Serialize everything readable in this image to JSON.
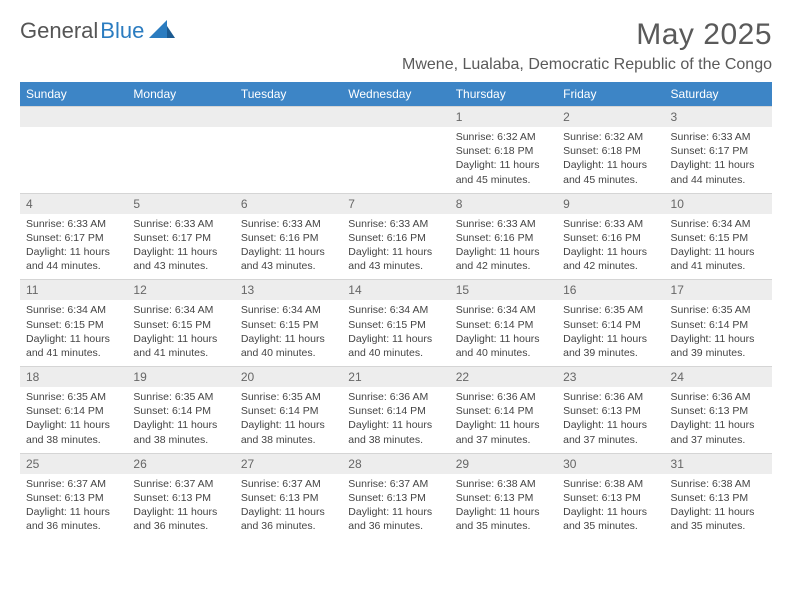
{
  "brand": {
    "part1": "General",
    "part2": "Blue"
  },
  "title": "May 2025",
  "location": "Mwene, Lualaba, Democratic Republic of the Congo",
  "colors": {
    "header_bg": "#3d85c6",
    "header_text": "#ffffff",
    "daynum_bg": "#ededed",
    "text": "#444444",
    "brand_blue": "#2b7cc0",
    "brand_gray": "#555555",
    "page_bg": "#ffffff"
  },
  "typography": {
    "title_fontsize": 30,
    "location_fontsize": 16,
    "header_fontsize": 12,
    "daynum_fontsize": 12,
    "detail_fontsize": 10.5
  },
  "weekdays": [
    "Sunday",
    "Monday",
    "Tuesday",
    "Wednesday",
    "Thursday",
    "Friday",
    "Saturday"
  ],
  "weeks": [
    [
      null,
      null,
      null,
      null,
      {
        "n": "1",
        "sr": "6:32 AM",
        "ss": "6:18 PM",
        "dl": "11 hours and 45 minutes."
      },
      {
        "n": "2",
        "sr": "6:32 AM",
        "ss": "6:18 PM",
        "dl": "11 hours and 45 minutes."
      },
      {
        "n": "3",
        "sr": "6:33 AM",
        "ss": "6:17 PM",
        "dl": "11 hours and 44 minutes."
      }
    ],
    [
      {
        "n": "4",
        "sr": "6:33 AM",
        "ss": "6:17 PM",
        "dl": "11 hours and 44 minutes."
      },
      {
        "n": "5",
        "sr": "6:33 AM",
        "ss": "6:17 PM",
        "dl": "11 hours and 43 minutes."
      },
      {
        "n": "6",
        "sr": "6:33 AM",
        "ss": "6:16 PM",
        "dl": "11 hours and 43 minutes."
      },
      {
        "n": "7",
        "sr": "6:33 AM",
        "ss": "6:16 PM",
        "dl": "11 hours and 43 minutes."
      },
      {
        "n": "8",
        "sr": "6:33 AM",
        "ss": "6:16 PM",
        "dl": "11 hours and 42 minutes."
      },
      {
        "n": "9",
        "sr": "6:33 AM",
        "ss": "6:16 PM",
        "dl": "11 hours and 42 minutes."
      },
      {
        "n": "10",
        "sr": "6:34 AM",
        "ss": "6:15 PM",
        "dl": "11 hours and 41 minutes."
      }
    ],
    [
      {
        "n": "11",
        "sr": "6:34 AM",
        "ss": "6:15 PM",
        "dl": "11 hours and 41 minutes."
      },
      {
        "n": "12",
        "sr": "6:34 AM",
        "ss": "6:15 PM",
        "dl": "11 hours and 41 minutes."
      },
      {
        "n": "13",
        "sr": "6:34 AM",
        "ss": "6:15 PM",
        "dl": "11 hours and 40 minutes."
      },
      {
        "n": "14",
        "sr": "6:34 AM",
        "ss": "6:15 PM",
        "dl": "11 hours and 40 minutes."
      },
      {
        "n": "15",
        "sr": "6:34 AM",
        "ss": "6:14 PM",
        "dl": "11 hours and 40 minutes."
      },
      {
        "n": "16",
        "sr": "6:35 AM",
        "ss": "6:14 PM",
        "dl": "11 hours and 39 minutes."
      },
      {
        "n": "17",
        "sr": "6:35 AM",
        "ss": "6:14 PM",
        "dl": "11 hours and 39 minutes."
      }
    ],
    [
      {
        "n": "18",
        "sr": "6:35 AM",
        "ss": "6:14 PM",
        "dl": "11 hours and 38 minutes."
      },
      {
        "n": "19",
        "sr": "6:35 AM",
        "ss": "6:14 PM",
        "dl": "11 hours and 38 minutes."
      },
      {
        "n": "20",
        "sr": "6:35 AM",
        "ss": "6:14 PM",
        "dl": "11 hours and 38 minutes."
      },
      {
        "n": "21",
        "sr": "6:36 AM",
        "ss": "6:14 PM",
        "dl": "11 hours and 38 minutes."
      },
      {
        "n": "22",
        "sr": "6:36 AM",
        "ss": "6:14 PM",
        "dl": "11 hours and 37 minutes."
      },
      {
        "n": "23",
        "sr": "6:36 AM",
        "ss": "6:13 PM",
        "dl": "11 hours and 37 minutes."
      },
      {
        "n": "24",
        "sr": "6:36 AM",
        "ss": "6:13 PM",
        "dl": "11 hours and 37 minutes."
      }
    ],
    [
      {
        "n": "25",
        "sr": "6:37 AM",
        "ss": "6:13 PM",
        "dl": "11 hours and 36 minutes."
      },
      {
        "n": "26",
        "sr": "6:37 AM",
        "ss": "6:13 PM",
        "dl": "11 hours and 36 minutes."
      },
      {
        "n": "27",
        "sr": "6:37 AM",
        "ss": "6:13 PM",
        "dl": "11 hours and 36 minutes."
      },
      {
        "n": "28",
        "sr": "6:37 AM",
        "ss": "6:13 PM",
        "dl": "11 hours and 36 minutes."
      },
      {
        "n": "29",
        "sr": "6:38 AM",
        "ss": "6:13 PM",
        "dl": "11 hours and 35 minutes."
      },
      {
        "n": "30",
        "sr": "6:38 AM",
        "ss": "6:13 PM",
        "dl": "11 hours and 35 minutes."
      },
      {
        "n": "31",
        "sr": "6:38 AM",
        "ss": "6:13 PM",
        "dl": "11 hours and 35 minutes."
      }
    ]
  ],
  "labels": {
    "sunrise": "Sunrise:",
    "sunset": "Sunset:",
    "daylight": "Daylight:"
  }
}
